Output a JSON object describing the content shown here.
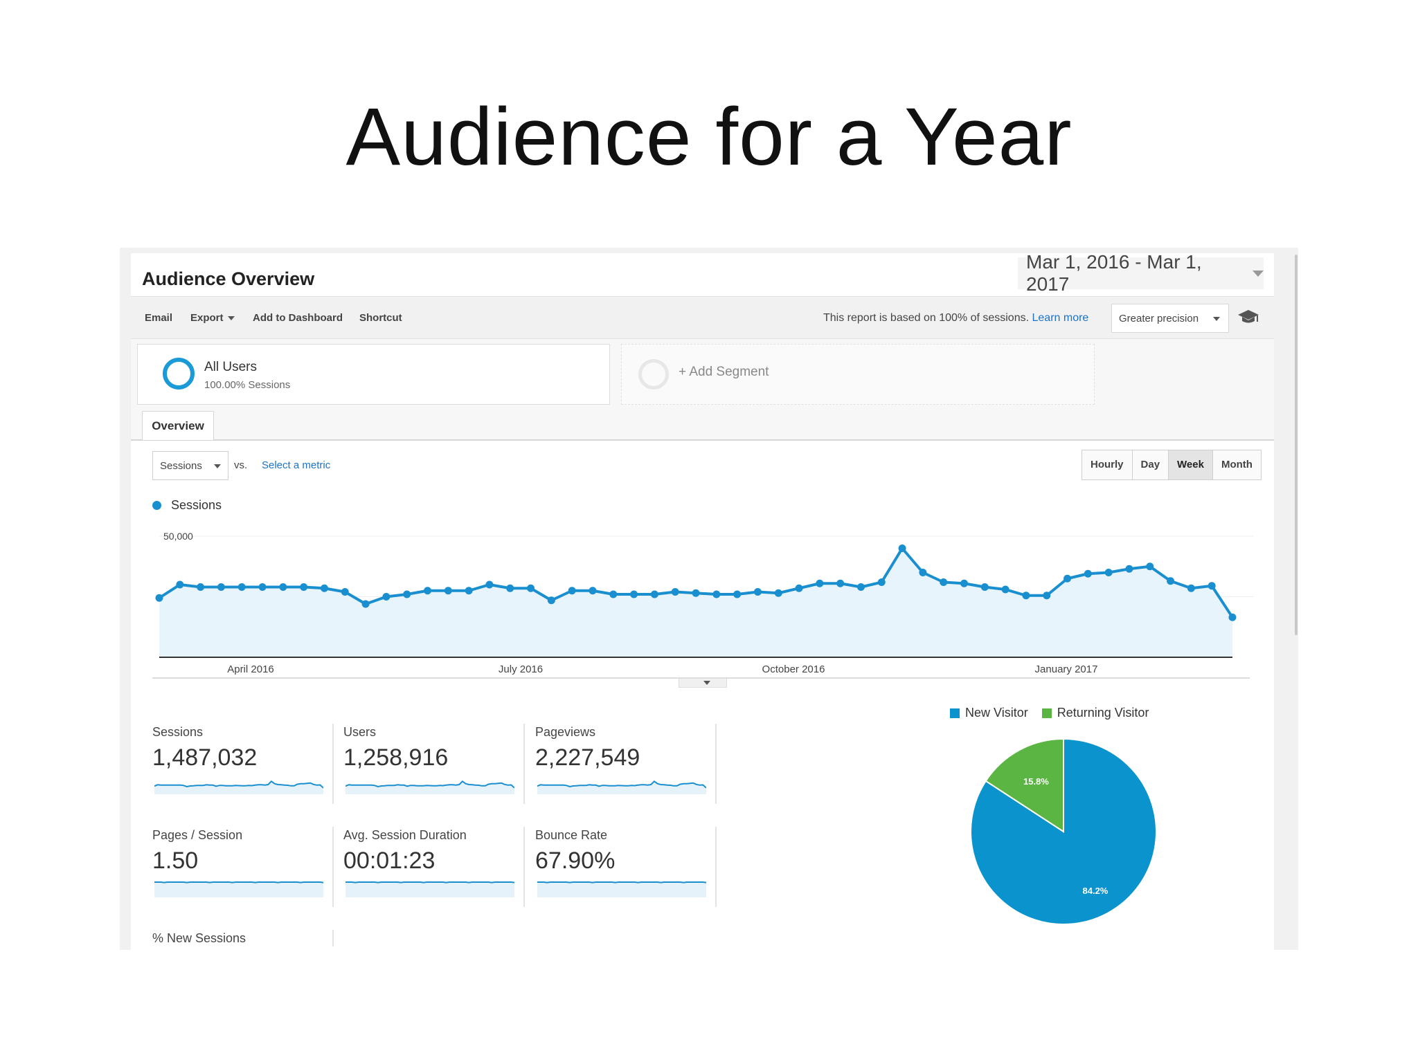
{
  "slide": {
    "title": "Audience for a Year"
  },
  "header": {
    "title": "Audience Overview",
    "date_range": "Mar 1, 2016 - Mar 1, 2017"
  },
  "toolbar": {
    "email": "Email",
    "export": "Export",
    "add_to_dashboard": "Add to Dashboard",
    "shortcut": "Shortcut",
    "report_note": "This report is based on 100% of sessions.",
    "learn_more": "Learn more",
    "precision": "Greater precision"
  },
  "segments": {
    "active": {
      "name": "All Users",
      "sub": "100.00% Sessions"
    },
    "add_label": "+ Add Segment"
  },
  "tabs": {
    "overview": "Overview"
  },
  "controls": {
    "metric": "Sessions",
    "vs": "vs.",
    "select_metric": "Select a metric",
    "granularity": [
      "Hourly",
      "Day",
      "Week",
      "Month"
    ],
    "active_granularity": "Week"
  },
  "chart_data": {
    "type": "area",
    "series": [
      {
        "name": "Sessions",
        "color": "#1a8fcf",
        "values": [
          24500,
          30000,
          29000,
          29000,
          29000,
          29000,
          29000,
          29000,
          28500,
          27000,
          22000,
          25000,
          26000,
          27500,
          27500,
          27500,
          30000,
          28500,
          28500,
          23500,
          27500,
          27500,
          26000,
          26000,
          26000,
          27000,
          26500,
          26000,
          26000,
          27000,
          26500,
          28500,
          30500,
          30500,
          29000,
          31000,
          45000,
          35000,
          31000,
          30500,
          29000,
          28000,
          25500,
          25500,
          32500,
          34500,
          35000,
          36500,
          37500,
          31500,
          28500,
          29500,
          16500
        ]
      }
    ],
    "x_labels": [
      "April 2016",
      "July 2016",
      "October 2016",
      "January 2017"
    ],
    "y_ticks": [
      "50,000",
      "25,000"
    ],
    "ylim": [
      0,
      50000
    ]
  },
  "stats": [
    {
      "label": "Sessions",
      "value": "1,487,032"
    },
    {
      "label": "Users",
      "value": "1,258,916"
    },
    {
      "label": "Pageviews",
      "value": "2,227,549"
    },
    {
      "label": "Pages / Session",
      "value": "1.50"
    },
    {
      "label": "Avg. Session Duration",
      "value": "00:01:23"
    },
    {
      "label": "Bounce Rate",
      "value": "67.90%"
    },
    {
      "label": "% New Sessions",
      "value": ""
    }
  ],
  "pie": {
    "legend": [
      {
        "name": "New Visitor",
        "color": "#0a93cc"
      },
      {
        "name": "Returning Visitor",
        "color": "#5bb543"
      }
    ],
    "slices": [
      {
        "name": "New Visitor",
        "value": 84.2,
        "label": "84.2%",
        "color": "#0a93cc"
      },
      {
        "name": "Returning Visitor",
        "value": 15.8,
        "label": "15.8%",
        "color": "#5bb543"
      }
    ]
  }
}
